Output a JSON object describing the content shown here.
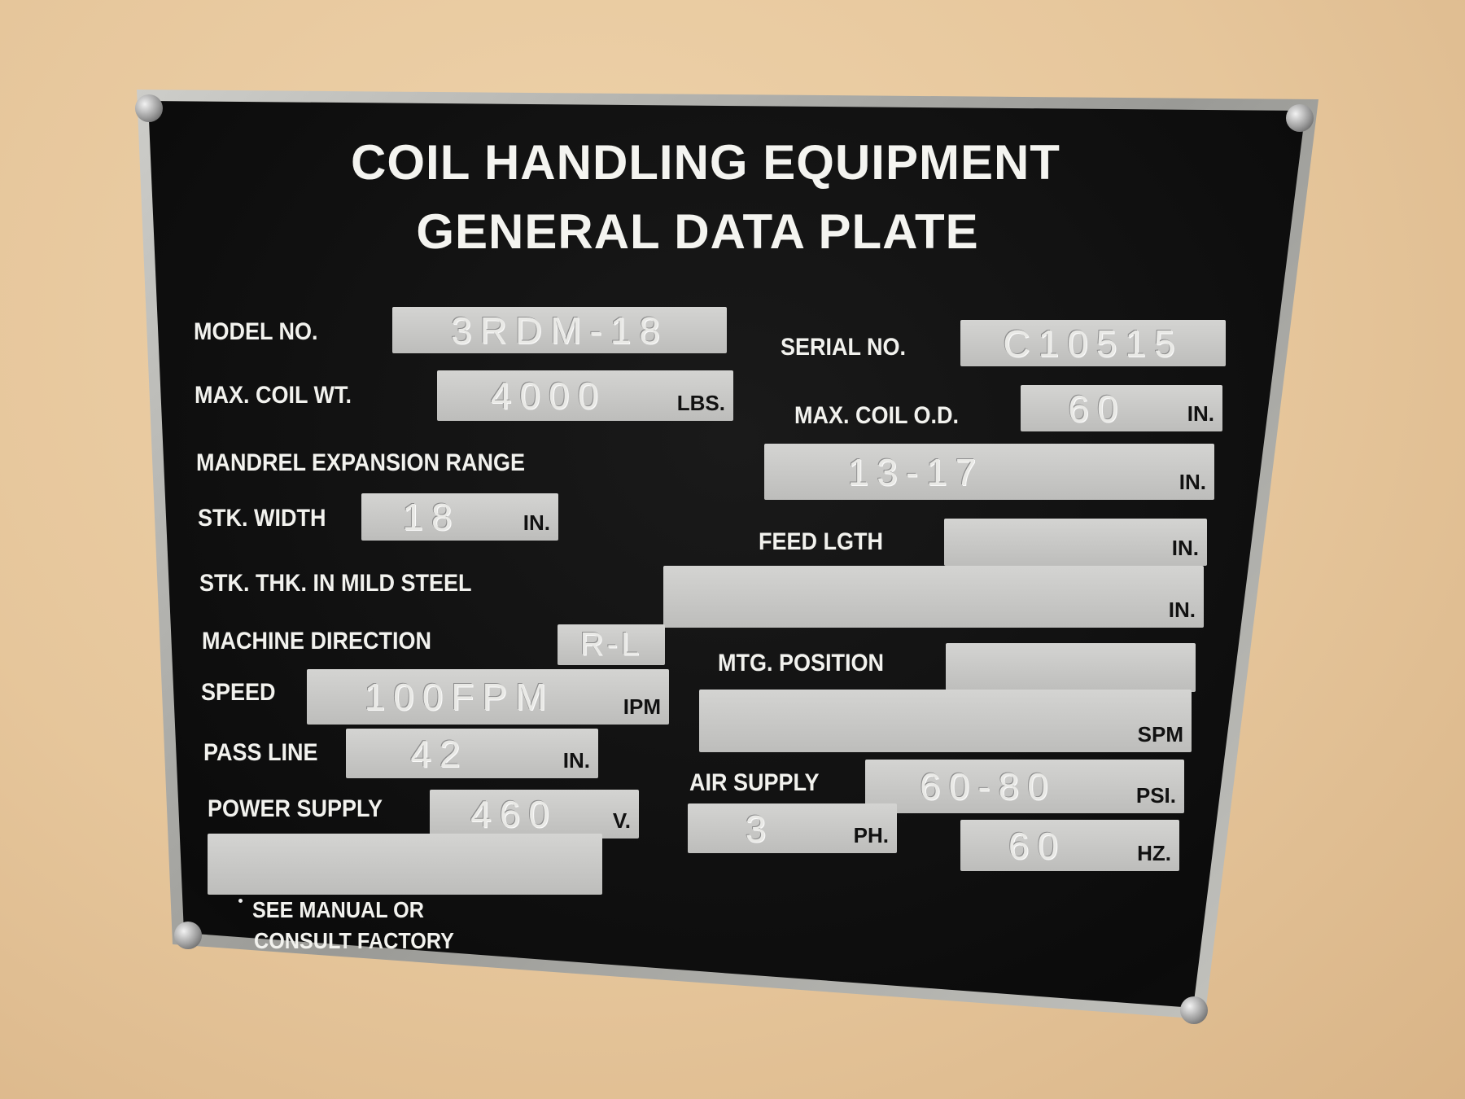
{
  "plate": {
    "title_line1": "COIL HANDLING EQUIPMENT",
    "title_line2": "GENERAL DATA PLATE",
    "fields": {
      "model_no": {
        "label": "MODEL NO.",
        "value": "3RDM-18"
      },
      "serial_no": {
        "label": "SERIAL NO.",
        "value": "C10515"
      },
      "max_coil_wt": {
        "label": "MAX. COIL WT.",
        "value": "4000",
        "unit": "LBS."
      },
      "max_coil_od": {
        "label": "MAX. COIL O.D.",
        "value": "60",
        "unit": "IN."
      },
      "mandrel_expansion_range": {
        "label": "MANDREL EXPANSION RANGE",
        "value": "13-17",
        "unit": "IN."
      },
      "stk_width": {
        "label": "STK. WIDTH",
        "value": "18",
        "unit": "IN."
      },
      "feed_lgth": {
        "label": "FEED LGTH",
        "value": "",
        "unit": "IN."
      },
      "stk_thk": {
        "label": "STK. THK. IN MILD STEEL",
        "value": "",
        "unit": "IN."
      },
      "machine_direction": {
        "label": "MACHINE DIRECTION",
        "value": "R-L"
      },
      "mtg_position": {
        "label": "MTG. POSITION",
        "value": ""
      },
      "speed": {
        "label": "SPEED",
        "value": "100FPM",
        "unit": "IPM"
      },
      "spm": {
        "value": "",
        "unit": "SPM"
      },
      "pass_line": {
        "label": "PASS LINE",
        "value": "42",
        "unit": "IN."
      },
      "air_supply": {
        "label": "AIR SUPPLY",
        "value": "60-80",
        "unit": "PSI."
      },
      "power_supply": {
        "label": "POWER SUPPLY",
        "value": "460",
        "unit": "V."
      },
      "phase": {
        "value": "3",
        "unit": "PH."
      },
      "frequency": {
        "value": "60",
        "unit": "HZ."
      }
    },
    "footnote_line1": "SEE MANUAL OR",
    "footnote_line2": "CONSULT FACTORY",
    "colors": {
      "plate": "#0f0f0f",
      "field": "#c8c8c6",
      "wall": "#e6c69b"
    }
  }
}
